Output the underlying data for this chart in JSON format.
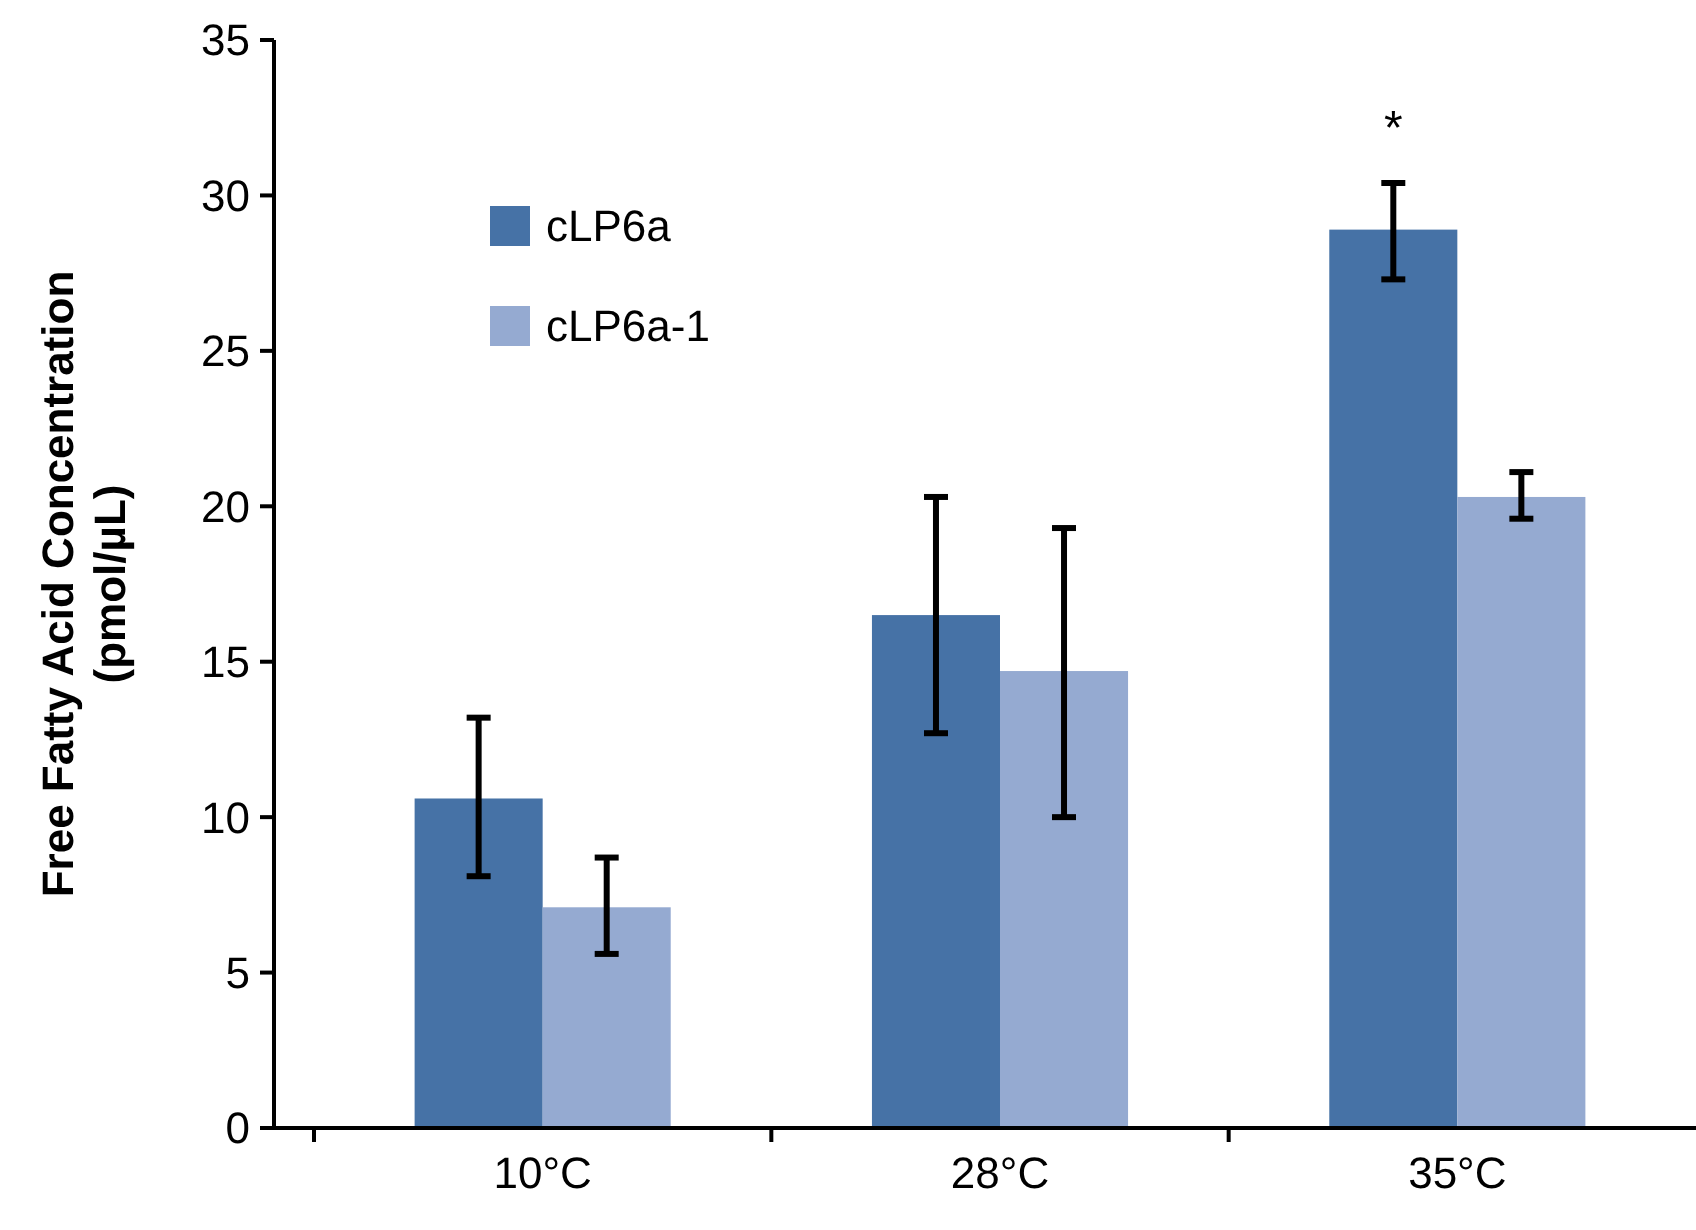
{
  "chart_data": {
    "type": "bar",
    "ylabel": "Free Fatty Acid Concentration\n(pmol/µL)",
    "categories": [
      "10°C",
      "28°C",
      "35°C"
    ],
    "series": [
      {
        "name": "cLP6a",
        "color": "#4672a6",
        "values": [
          10.6,
          16.5,
          28.9
        ],
        "errors": [
          [
            8.1,
            13.2
          ],
          [
            12.7,
            20.3
          ],
          [
            27.3,
            30.4
          ]
        ]
      },
      {
        "name": "cLP6a-1",
        "color": "#95aad1",
        "values": [
          7.1,
          14.7,
          20.3
        ],
        "errors": [
          [
            5.6,
            8.7
          ],
          [
            10.0,
            19.3
          ],
          [
            19.6,
            21.1
          ]
        ]
      }
    ],
    "ylim": [
      0,
      35
    ],
    "yticks": [
      0,
      5,
      10,
      15,
      20,
      25,
      30,
      35
    ],
    "legend": "top left",
    "grid": false,
    "annotations": [
      "*"
    ]
  }
}
